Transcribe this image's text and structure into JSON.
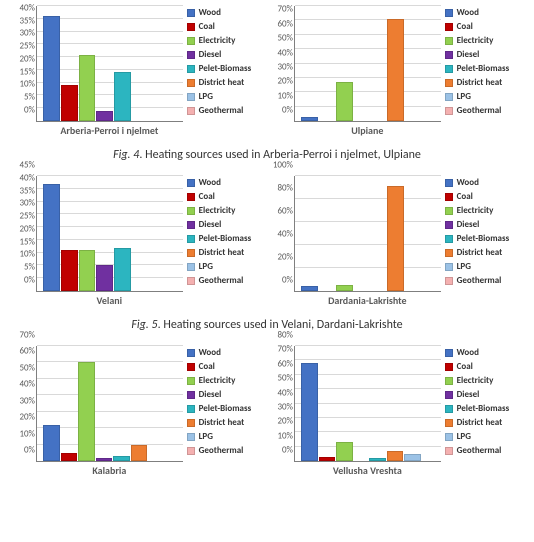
{
  "series": [
    {
      "name": "Wood",
      "color": "#4472c4"
    },
    {
      "name": "Coal",
      "color": "#c00000"
    },
    {
      "name": "Electricity",
      "color": "#92d050"
    },
    {
      "name": "Diesel",
      "color": "#7030a0"
    },
    {
      "name": "Pelet-Biomass",
      "color": "#2cb5c0"
    },
    {
      "name": "District heat",
      "color": "#ed7d31"
    },
    {
      "name": "LPG",
      "color": "#9bc2e6"
    },
    {
      "name": "Geothermal",
      "color": "#f4b0b0"
    }
  ],
  "charts": {
    "arberia": {
      "title": "Arberia-Perroi i njelmet",
      "ymax": 45,
      "ystep": 5,
      "values": {
        "Wood": 41,
        "Coal": 14,
        "Electricity": 26,
        "Diesel": 4,
        "Pelet-Biomass": 19,
        "District heat": 0,
        "LPG": 0,
        "Geothermal": 0
      }
    },
    "ulpiane": {
      "title": "Ulpiane",
      "ymax": 80,
      "ystep": 10,
      "values": {
        "Wood": 3,
        "Coal": 0,
        "Electricity": 27,
        "Diesel": 0,
        "Pelet-Biomass": 0,
        "District heat": 71,
        "LPG": 0,
        "Geothermal": 0
      }
    },
    "velani": {
      "title": "Velani",
      "ymax": 45,
      "ystep": 5,
      "values": {
        "Wood": 42,
        "Coal": 16,
        "Electricity": 16,
        "Diesel": 10,
        "Pelet-Biomass": 17,
        "District heat": 0,
        "LPG": 0,
        "Geothermal": 0
      }
    },
    "dardania": {
      "title": "Dardania-Lakrishte",
      "ymax": 100,
      "ystep": 20,
      "values": {
        "Wood": 4,
        "Coal": 0,
        "Electricity": 5,
        "Diesel": 0,
        "Pelet-Biomass": 0,
        "District heat": 91,
        "LPG": 0,
        "Geothermal": 0
      }
    },
    "kalabria": {
      "title": "Kalabria",
      "ymax": 70,
      "ystep": 10,
      "values": {
        "Wood": 22,
        "Coal": 5,
        "Electricity": 60,
        "Diesel": 2,
        "Pelet-Biomass": 3,
        "District heat": 10,
        "LPG": 0,
        "Geothermal": 0
      }
    },
    "vellusha": {
      "title": "Vellusha Vreshta",
      "ymax": 80,
      "ystep": 10,
      "values": {
        "Wood": 68,
        "Coal": 3,
        "Electricity": 13,
        "Diesel": 0,
        "Pelet-Biomass": 2,
        "District heat": 7,
        "LPG": 5,
        "Geothermal": 0
      }
    }
  },
  "captions": {
    "fig4": {
      "label": "Fig. 4",
      "text": ". Heating sources used in Arberia-Perroi i njelmet, Ulpiane"
    },
    "fig5": {
      "label": "Fig. 5",
      "text": ". Heating sources used in Velani, Dardani-Lakrishte"
    }
  }
}
